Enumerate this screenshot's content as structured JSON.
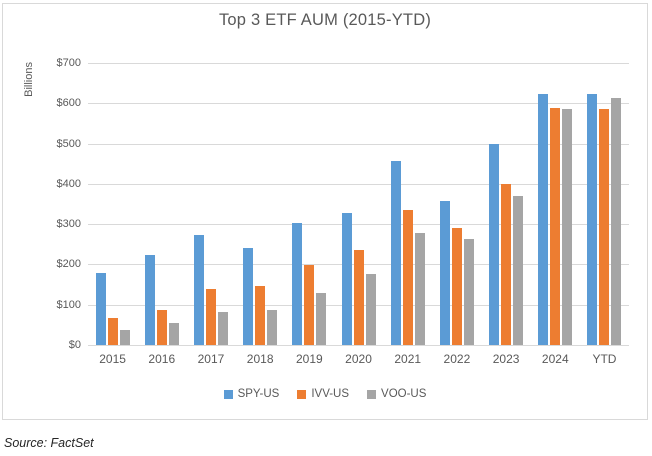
{
  "title": "Top 3 ETF AUM (2015-YTD)",
  "source_note": "Source: FactSet",
  "colors": {
    "series_blue": "#5b9bd5",
    "series_orange": "#ed7d31",
    "series_gray": "#a5a5a5",
    "gridline": "#d9d9d9",
    "axis_text": "#595959",
    "frame_border": "#d9d9d9",
    "background": "#ffffff"
  },
  "chart_data": {
    "type": "bar",
    "title": "Top 3 ETF AUM (2015-YTD)",
    "ylabel": "Billions",
    "xlabel": "",
    "ylim": [
      0,
      700
    ],
    "grid": true,
    "legend_position": "bottom",
    "y_ticks": [
      {
        "label": "$0",
        "value": 0
      },
      {
        "label": "$100",
        "value": 100
      },
      {
        "label": "$200",
        "value": 200
      },
      {
        "label": "$300",
        "value": 300
      },
      {
        "label": "$400",
        "value": 400
      },
      {
        "label": "$500",
        "value": 500
      },
      {
        "label": "$600",
        "value": 600
      },
      {
        "label": "$700",
        "value": 700
      }
    ],
    "categories": [
      "2015",
      "2016",
      "2017",
      "2018",
      "2019",
      "2020",
      "2021",
      "2022",
      "2023",
      "2024",
      "YTD"
    ],
    "series": [
      {
        "name": "SPY-US",
        "color": "#5b9bd5",
        "values": [
          178,
          224,
          274,
          240,
          304,
          328,
          456,
          357,
          500,
          623,
          623
        ]
      },
      {
        "name": "IVV-US",
        "color": "#ed7d31",
        "values": [
          67,
          87,
          140,
          147,
          198,
          235,
          335,
          290,
          400,
          588,
          585
        ]
      },
      {
        "name": "VOO-US",
        "color": "#a5a5a5",
        "values": [
          38,
          54,
          81,
          87,
          129,
          175,
          278,
          262,
          371,
          585,
          612
        ]
      }
    ]
  }
}
